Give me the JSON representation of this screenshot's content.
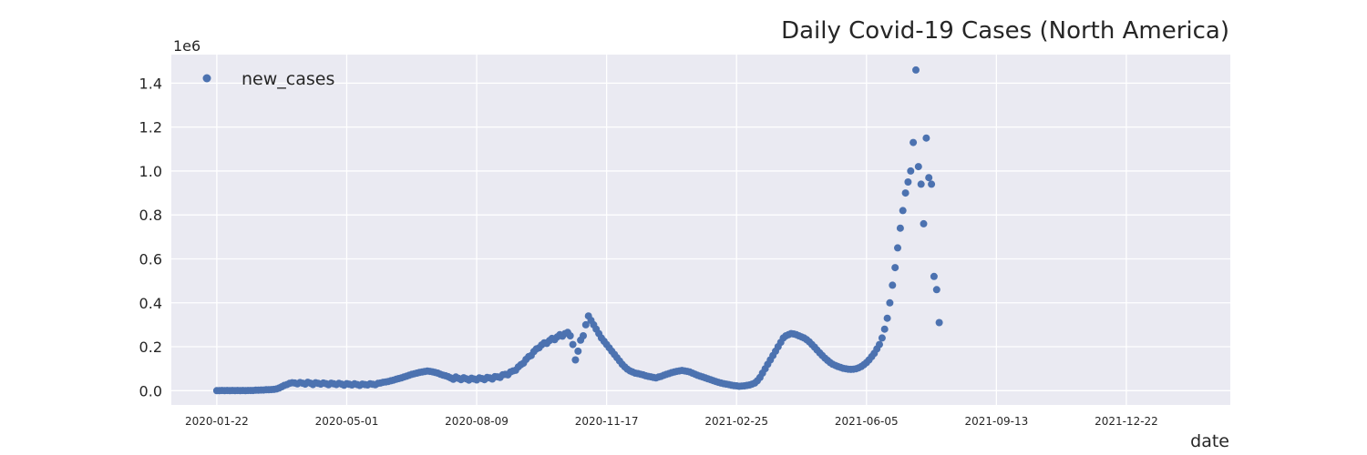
{
  "chart_data": {
    "type": "scatter",
    "title": "Daily Covid-19 Cases (North America)",
    "xlabel": "date",
    "ylabel": "",
    "y_offset_label": "1e6",
    "x_tick_labels": [
      "2020-01-22",
      "2020-05-01",
      "2020-08-09",
      "2020-11-17",
      "2021-02-25",
      "2021-06-05",
      "2021-09-13",
      "2021-12-22"
    ],
    "y_tick_labels": [
      "0.0",
      "0.2",
      "0.4",
      "0.6",
      "0.8",
      "1.0",
      "1.2",
      "1.4"
    ],
    "ylim": [
      -0.065,
      1.53
    ],
    "xlim_days": [
      -35,
      780
    ],
    "x_start_date": "2020-01-22",
    "grid": true,
    "legend_position": "top-left",
    "marker_color": "#4c72b0",
    "series": [
      {
        "name": "new_cases",
        "points": [
          [
            0,
            0.0
          ],
          [
            2,
            0.0
          ],
          [
            4,
            0.001
          ],
          [
            6,
            0.0
          ],
          [
            8,
            0.001
          ],
          [
            10,
            0.0
          ],
          [
            12,
            0.001
          ],
          [
            14,
            0.0
          ],
          [
            16,
            0.001
          ],
          [
            18,
            0.0
          ],
          [
            20,
            0.001
          ],
          [
            22,
            0.0
          ],
          [
            24,
            0.001
          ],
          [
            26,
            0.001
          ],
          [
            28,
            0.001
          ],
          [
            30,
            0.002
          ],
          [
            32,
            0.002
          ],
          [
            34,
            0.003
          ],
          [
            36,
            0.003
          ],
          [
            38,
            0.004
          ],
          [
            40,
            0.004
          ],
          [
            42,
            0.005
          ],
          [
            44,
            0.006
          ],
          [
            46,
            0.008
          ],
          [
            48,
            0.012
          ],
          [
            50,
            0.018
          ],
          [
            52,
            0.024
          ],
          [
            54,
            0.028
          ],
          [
            56,
            0.033
          ],
          [
            58,
            0.036
          ],
          [
            60,
            0.035
          ],
          [
            62,
            0.031
          ],
          [
            64,
            0.037
          ],
          [
            66,
            0.034
          ],
          [
            68,
            0.03
          ],
          [
            70,
            0.038
          ],
          [
            72,
            0.034
          ],
          [
            74,
            0.028
          ],
          [
            76,
            0.036
          ],
          [
            78,
            0.033
          ],
          [
            80,
            0.03
          ],
          [
            82,
            0.035
          ],
          [
            84,
            0.032
          ],
          [
            86,
            0.027
          ],
          [
            88,
            0.034
          ],
          [
            90,
            0.031
          ],
          [
            92,
            0.028
          ],
          [
            94,
            0.033
          ],
          [
            96,
            0.03
          ],
          [
            98,
            0.025
          ],
          [
            100,
            0.032
          ],
          [
            102,
            0.029
          ],
          [
            104,
            0.026
          ],
          [
            106,
            0.031
          ],
          [
            108,
            0.028
          ],
          [
            110,
            0.024
          ],
          [
            112,
            0.03
          ],
          [
            114,
            0.028
          ],
          [
            116,
            0.026
          ],
          [
            118,
            0.031
          ],
          [
            120,
            0.029
          ],
          [
            122,
            0.027
          ],
          [
            124,
            0.033
          ],
          [
            126,
            0.035
          ],
          [
            128,
            0.038
          ],
          [
            130,
            0.04
          ],
          [
            132,
            0.042
          ],
          [
            134,
            0.045
          ],
          [
            136,
            0.048
          ],
          [
            138,
            0.052
          ],
          [
            140,
            0.055
          ],
          [
            142,
            0.058
          ],
          [
            144,
            0.062
          ],
          [
            146,
            0.066
          ],
          [
            148,
            0.07
          ],
          [
            150,
            0.074
          ],
          [
            152,
            0.077
          ],
          [
            154,
            0.08
          ],
          [
            156,
            0.083
          ],
          [
            158,
            0.085
          ],
          [
            160,
            0.087
          ],
          [
            162,
            0.089
          ],
          [
            164,
            0.088
          ],
          [
            166,
            0.086
          ],
          [
            168,
            0.083
          ],
          [
            170,
            0.08
          ],
          [
            172,
            0.075
          ],
          [
            174,
            0.071
          ],
          [
            176,
            0.068
          ],
          [
            178,
            0.064
          ],
          [
            180,
            0.058
          ],
          [
            182,
            0.052
          ],
          [
            184,
            0.062
          ],
          [
            186,
            0.056
          ],
          [
            188,
            0.05
          ],
          [
            190,
            0.059
          ],
          [
            192,
            0.054
          ],
          [
            194,
            0.048
          ],
          [
            196,
            0.057
          ],
          [
            198,
            0.053
          ],
          [
            200,
            0.049
          ],
          [
            202,
            0.058
          ],
          [
            204,
            0.055
          ],
          [
            206,
            0.05
          ],
          [
            208,
            0.06
          ],
          [
            210,
            0.058
          ],
          [
            212,
            0.053
          ],
          [
            214,
            0.064
          ],
          [
            216,
            0.063
          ],
          [
            218,
            0.06
          ],
          [
            220,
            0.072
          ],
          [
            222,
            0.074
          ],
          [
            224,
            0.072
          ],
          [
            226,
            0.085
          ],
          [
            228,
            0.09
          ],
          [
            230,
            0.093
          ],
          [
            232,
            0.108
          ],
          [
            234,
            0.118
          ],
          [
            236,
            0.125
          ],
          [
            238,
            0.142
          ],
          [
            240,
            0.155
          ],
          [
            242,
            0.16
          ],
          [
            244,
            0.178
          ],
          [
            246,
            0.19
          ],
          [
            248,
            0.195
          ],
          [
            250,
            0.208
          ],
          [
            252,
            0.218
          ],
          [
            254,
            0.215
          ],
          [
            256,
            0.228
          ],
          [
            258,
            0.238
          ],
          [
            260,
            0.232
          ],
          [
            262,
            0.245
          ],
          [
            264,
            0.255
          ],
          [
            266,
            0.248
          ],
          [
            268,
            0.26
          ],
          [
            270,
            0.265
          ],
          [
            272,
            0.25
          ],
          [
            274,
            0.21
          ],
          [
            276,
            0.14
          ],
          [
            278,
            0.18
          ],
          [
            280,
            0.23
          ],
          [
            282,
            0.25
          ],
          [
            284,
            0.3
          ],
          [
            286,
            0.34
          ],
          [
            288,
            0.32
          ],
          [
            290,
            0.3
          ],
          [
            292,
            0.28
          ],
          [
            294,
            0.26
          ],
          [
            296,
            0.24
          ],
          [
            298,
            0.225
          ],
          [
            300,
            0.21
          ],
          [
            302,
            0.195
          ],
          [
            304,
            0.18
          ],
          [
            306,
            0.165
          ],
          [
            308,
            0.15
          ],
          [
            310,
            0.135
          ],
          [
            312,
            0.12
          ],
          [
            314,
            0.108
          ],
          [
            316,
            0.098
          ],
          [
            318,
            0.09
          ],
          [
            320,
            0.085
          ],
          [
            322,
            0.08
          ],
          [
            324,
            0.078
          ],
          [
            326,
            0.075
          ],
          [
            328,
            0.072
          ],
          [
            330,
            0.068
          ],
          [
            332,
            0.065
          ],
          [
            334,
            0.063
          ],
          [
            336,
            0.06
          ],
          [
            338,
            0.058
          ],
          [
            340,
            0.062
          ],
          [
            342,
            0.065
          ],
          [
            344,
            0.07
          ],
          [
            346,
            0.074
          ],
          [
            348,
            0.078
          ],
          [
            350,
            0.082
          ],
          [
            352,
            0.085
          ],
          [
            354,
            0.088
          ],
          [
            356,
            0.09
          ],
          [
            358,
            0.092
          ],
          [
            360,
            0.09
          ],
          [
            362,
            0.088
          ],
          [
            364,
            0.085
          ],
          [
            366,
            0.08
          ],
          [
            368,
            0.075
          ],
          [
            370,
            0.07
          ],
          [
            372,
            0.066
          ],
          [
            374,
            0.062
          ],
          [
            376,
            0.058
          ],
          [
            378,
            0.054
          ],
          [
            380,
            0.05
          ],
          [
            382,
            0.046
          ],
          [
            384,
            0.042
          ],
          [
            386,
            0.038
          ],
          [
            388,
            0.035
          ],
          [
            390,
            0.032
          ],
          [
            392,
            0.03
          ],
          [
            394,
            0.028
          ],
          [
            396,
            0.025
          ],
          [
            398,
            0.023
          ],
          [
            400,
            0.022
          ],
          [
            402,
            0.02
          ],
          [
            404,
            0.021
          ],
          [
            406,
            0.022
          ],
          [
            408,
            0.024
          ],
          [
            410,
            0.026
          ],
          [
            412,
            0.03
          ],
          [
            414,
            0.035
          ],
          [
            416,
            0.045
          ],
          [
            418,
            0.06
          ],
          [
            420,
            0.08
          ],
          [
            422,
            0.1
          ],
          [
            424,
            0.12
          ],
          [
            426,
            0.14
          ],
          [
            428,
            0.16
          ],
          [
            430,
            0.18
          ],
          [
            432,
            0.2
          ],
          [
            434,
            0.22
          ],
          [
            436,
            0.24
          ],
          [
            438,
            0.25
          ],
          [
            440,
            0.255
          ],
          [
            442,
            0.26
          ],
          [
            444,
            0.258
          ],
          [
            446,
            0.255
          ],
          [
            448,
            0.25
          ],
          [
            450,
            0.245
          ],
          [
            452,
            0.24
          ],
          [
            454,
            0.232
          ],
          [
            456,
            0.222
          ],
          [
            458,
            0.21
          ],
          [
            460,
            0.198
          ],
          [
            462,
            0.185
          ],
          [
            464,
            0.172
          ],
          [
            466,
            0.16
          ],
          [
            468,
            0.148
          ],
          [
            470,
            0.138
          ],
          [
            472,
            0.128
          ],
          [
            474,
            0.12
          ],
          [
            476,
            0.115
          ],
          [
            478,
            0.11
          ],
          [
            480,
            0.106
          ],
          [
            482,
            0.102
          ],
          [
            484,
            0.1
          ],
          [
            486,
            0.098
          ],
          [
            488,
            0.097
          ],
          [
            490,
            0.098
          ],
          [
            492,
            0.1
          ],
          [
            494,
            0.104
          ],
          [
            496,
            0.11
          ],
          [
            498,
            0.118
          ],
          [
            500,
            0.128
          ],
          [
            502,
            0.14
          ],
          [
            504,
            0.155
          ],
          [
            506,
            0.17
          ],
          [
            508,
            0.19
          ],
          [
            510,
            0.21
          ],
          [
            512,
            0.24
          ],
          [
            514,
            0.28
          ],
          [
            516,
            0.33
          ],
          [
            518,
            0.4
          ],
          [
            520,
            0.48
          ],
          [
            522,
            0.56
          ],
          [
            524,
            0.65
          ],
          [
            526,
            0.74
          ],
          [
            528,
            0.82
          ],
          [
            530,
            0.9
          ],
          [
            532,
            0.95
          ],
          [
            534,
            1.0
          ],
          [
            536,
            1.13
          ],
          [
            538,
            1.46
          ],
          [
            540,
            1.02
          ],
          [
            542,
            0.94
          ],
          [
            544,
            0.76
          ],
          [
            546,
            1.15
          ],
          [
            548,
            0.97
          ],
          [
            550,
            0.94
          ],
          [
            552,
            0.52
          ],
          [
            554,
            0.46
          ],
          [
            556,
            0.31
          ]
        ]
      }
    ]
  }
}
